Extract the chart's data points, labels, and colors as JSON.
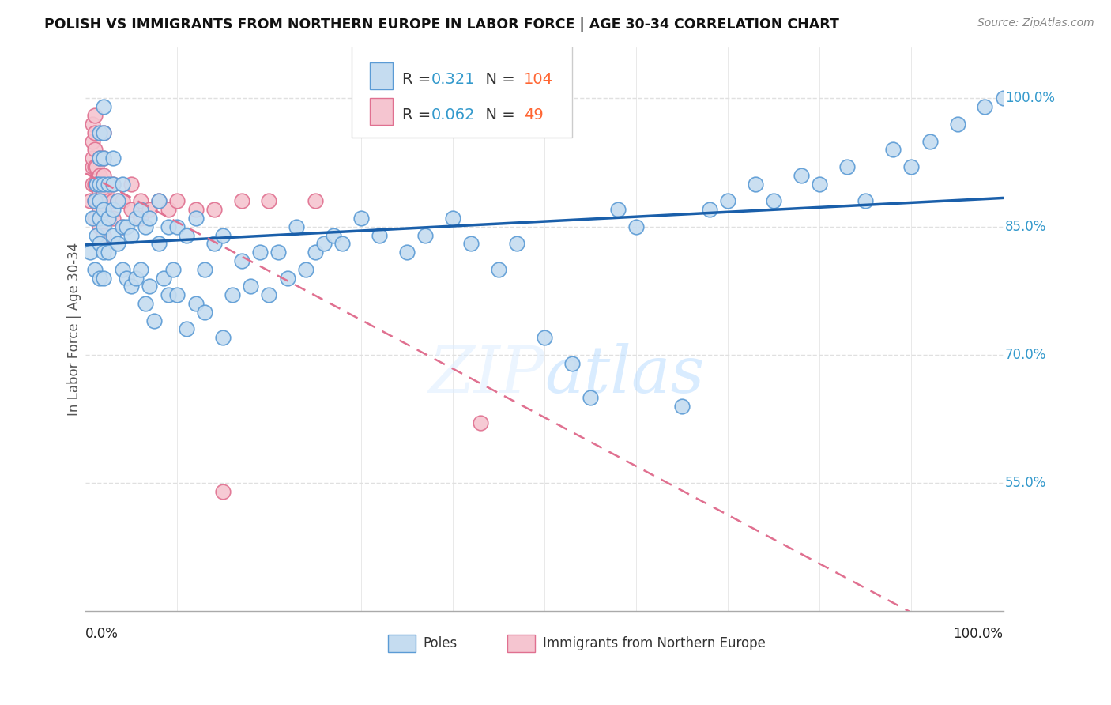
{
  "title": "POLISH VS IMMIGRANTS FROM NORTHERN EUROPE IN LABOR FORCE | AGE 30-34 CORRELATION CHART",
  "source": "Source: ZipAtlas.com",
  "ylabel": "In Labor Force | Age 30-34",
  "xlim": [
    0.0,
    1.0
  ],
  "ylim": [
    0.4,
    1.06
  ],
  "yticks": [
    0.55,
    0.7,
    0.85,
    1.0
  ],
  "ytick_labels": [
    "55.0%",
    "70.0%",
    "85.0%",
    "100.0%"
  ],
  "grid_color": "#e0e0e0",
  "background_color": "#ffffff",
  "poles_color": "#c5dcf0",
  "poles_edge_color": "#5b9bd5",
  "immigrants_color": "#f5c5d0",
  "immigrants_edge_color": "#e07090",
  "poles_R": 0.321,
  "poles_N": 104,
  "immigrants_R": 0.062,
  "immigrants_N": 49,
  "legend_blue_label": "Poles",
  "legend_pink_label": "Immigrants from Northern Europe",
  "poles_x": [
    0.005,
    0.008,
    0.01,
    0.01,
    0.012,
    0.012,
    0.015,
    0.015,
    0.015,
    0.015,
    0.015,
    0.015,
    0.015,
    0.02,
    0.02,
    0.02,
    0.02,
    0.02,
    0.02,
    0.02,
    0.02,
    0.025,
    0.025,
    0.025,
    0.03,
    0.03,
    0.03,
    0.03,
    0.035,
    0.035,
    0.04,
    0.04,
    0.04,
    0.045,
    0.045,
    0.05,
    0.05,
    0.055,
    0.055,
    0.06,
    0.06,
    0.065,
    0.065,
    0.07,
    0.07,
    0.075,
    0.08,
    0.08,
    0.085,
    0.09,
    0.09,
    0.095,
    0.1,
    0.1,
    0.11,
    0.11,
    0.12,
    0.12,
    0.13,
    0.13,
    0.14,
    0.15,
    0.15,
    0.16,
    0.17,
    0.18,
    0.19,
    0.2,
    0.21,
    0.22,
    0.23,
    0.24,
    0.25,
    0.26,
    0.27,
    0.28,
    0.3,
    0.32,
    0.35,
    0.37,
    0.4,
    0.42,
    0.45,
    0.47,
    0.5,
    0.53,
    0.55,
    0.58,
    0.6,
    0.65,
    0.68,
    0.7,
    0.73,
    0.75,
    0.78,
    0.8,
    0.83,
    0.85,
    0.88,
    0.9,
    0.92,
    0.95,
    0.98,
    1.0
  ],
  "poles_y": [
    0.82,
    0.86,
    0.8,
    0.88,
    0.84,
    0.9,
    0.79,
    0.83,
    0.86,
    0.88,
    0.9,
    0.93,
    0.96,
    0.79,
    0.82,
    0.85,
    0.87,
    0.9,
    0.93,
    0.96,
    0.99,
    0.82,
    0.86,
    0.9,
    0.84,
    0.87,
    0.9,
    0.93,
    0.83,
    0.88,
    0.8,
    0.85,
    0.9,
    0.79,
    0.85,
    0.78,
    0.84,
    0.79,
    0.86,
    0.8,
    0.87,
    0.76,
    0.85,
    0.78,
    0.86,
    0.74,
    0.83,
    0.88,
    0.79,
    0.77,
    0.85,
    0.8,
    0.77,
    0.85,
    0.73,
    0.84,
    0.76,
    0.86,
    0.8,
    0.75,
    0.83,
    0.72,
    0.84,
    0.77,
    0.81,
    0.78,
    0.82,
    0.77,
    0.82,
    0.79,
    0.85,
    0.8,
    0.82,
    0.83,
    0.84,
    0.83,
    0.86,
    0.84,
    0.82,
    0.84,
    0.86,
    0.83,
    0.8,
    0.83,
    0.72,
    0.69,
    0.65,
    0.87,
    0.85,
    0.64,
    0.87,
    0.88,
    0.9,
    0.88,
    0.91,
    0.9,
    0.92,
    0.88,
    0.94,
    0.92,
    0.95,
    0.97,
    0.99,
    1.0
  ],
  "immigrants_x": [
    0.005,
    0.008,
    0.008,
    0.008,
    0.008,
    0.008,
    0.01,
    0.01,
    0.01,
    0.01,
    0.01,
    0.01,
    0.01,
    0.012,
    0.012,
    0.012,
    0.015,
    0.015,
    0.015,
    0.015,
    0.015,
    0.02,
    0.02,
    0.02,
    0.02,
    0.02,
    0.02,
    0.025,
    0.03,
    0.03,
    0.03,
    0.035,
    0.04,
    0.04,
    0.05,
    0.05,
    0.06,
    0.06,
    0.07,
    0.08,
    0.09,
    0.1,
    0.12,
    0.14,
    0.17,
    0.2,
    0.25,
    0.43,
    0.15
  ],
  "immigrants_y": [
    0.88,
    0.9,
    0.92,
    0.93,
    0.95,
    0.97,
    0.86,
    0.88,
    0.9,
    0.92,
    0.94,
    0.96,
    0.98,
    0.88,
    0.9,
    0.92,
    0.85,
    0.87,
    0.89,
    0.91,
    0.93,
    0.84,
    0.87,
    0.89,
    0.91,
    0.93,
    0.96,
    0.88,
    0.86,
    0.88,
    0.9,
    0.88,
    0.85,
    0.88,
    0.87,
    0.9,
    0.86,
    0.88,
    0.87,
    0.88,
    0.87,
    0.88,
    0.87,
    0.87,
    0.88,
    0.88,
    0.88,
    0.62,
    0.54
  ]
}
